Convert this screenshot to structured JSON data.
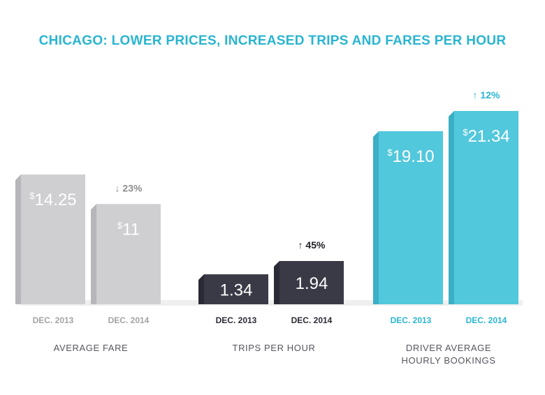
{
  "chart_data": {
    "type": "bar",
    "title": "CHICAGO: LOWER PRICES, INCREASED TRIPS AND FARES PER HOUR",
    "colors": {
      "title": "#29b5d1",
      "gray": {
        "front": "#cfcfd2",
        "top": "#e3e3e6",
        "side": "#b6b6ba",
        "label": "#a3a3a7",
        "change": "#8e8e92"
      },
      "dark": {
        "front": "#3a3a47",
        "top": "#55555f",
        "side": "#2a2a34",
        "label": "#2a2a34",
        "change": "#1e1e26"
      },
      "teal": {
        "front": "#52c8dc",
        "top": "#7cd8e8",
        "side": "#3aafc6",
        "label": "#29b5d1",
        "change": "#29b5d1"
      },
      "floor": "#efefef",
      "group_label": "#555560",
      "value_text": "#ffffff"
    },
    "groups": [
      {
        "name": "AVERAGE FARE",
        "name_lines": [
          "AVERAGE FARE"
        ],
        "theme": "gray",
        "change": {
          "direction": "down",
          "text": "23%"
        },
        "bars": [
          {
            "category": "DEC. 2013",
            "value": 14.25,
            "label_prefix": "$",
            "label_number": "14.25"
          },
          {
            "category": "DEC. 2014",
            "value": 11,
            "label_prefix": "$",
            "label_number": "11"
          }
        ]
      },
      {
        "name": "TRIPS PER HOUR",
        "name_lines": [
          "TRIPS PER HOUR"
        ],
        "theme": "dark",
        "change": {
          "direction": "up",
          "text": "45%"
        },
        "bars": [
          {
            "category": "DEC. 2013",
            "value": 1.34,
            "label_prefix": "",
            "label_number": "1.34"
          },
          {
            "category": "DEC. 2014",
            "value": 1.94,
            "label_prefix": "",
            "label_number": "1.94"
          }
        ]
      },
      {
        "name": "DRIVER AVERAGE HOURLY BOOKINGS",
        "name_lines": [
          "DRIVER AVERAGE",
          "HOURLY BOOKINGS"
        ],
        "theme": "teal",
        "change": {
          "direction": "up",
          "text": "12%"
        },
        "bars": [
          {
            "category": "DEC. 2013",
            "value": 19.1,
            "label_prefix": "$",
            "label_number": "19.10"
          },
          {
            "category": "DEC. 2014",
            "value": 21.34,
            "label_prefix": "$",
            "label_number": "21.34"
          }
        ]
      }
    ]
  }
}
